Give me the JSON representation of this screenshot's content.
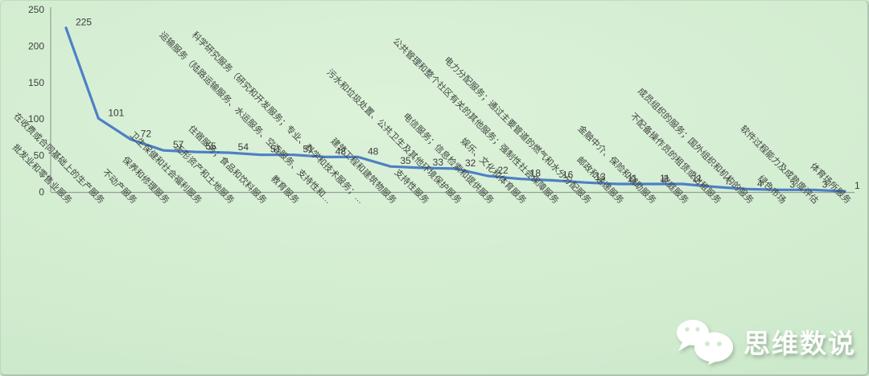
{
  "chart_data": {
    "type": "line",
    "title": "",
    "xlabel": "",
    "ylabel": "",
    "categories": [
      "批发业和零售业服务",
      "在收费或合同基础上的生产服务",
      "不动产服务",
      "保养和修理服务",
      "卫生保健和社会福利服务",
      "无形资产和土地服务",
      "住宿服务；食品和饮料服务",
      "教育服务",
      "运输服务（陆路运输服务、水运服务、空运服务、支持性和…",
      "科学研究服务（研究和开发服务；专业、科学和技术服务；…",
      "建筑工程和建筑物服务",
      "支持性服务",
      "污水和垃圾处置、公共卫生及其他环境保护服务",
      "电信服务；信息检索和提供服务",
      "娱乐、文化和体育服务",
      "公共管理和整个社区有关的其他服务；强制性社会保障服务",
      "电力分配服务；通过主要管道的燃气和水分分配服务",
      "邮政和速递服务",
      "金融中介、保险和辅助服务",
      "家庭服务",
      "不配备操作员的租赁或出租服务",
      "成员组织的服务；国外组织和机构的服务",
      "绿色市场",
      "软件过程能力及成熟度评估",
      "体育场所服务"
    ],
    "values": [
      225,
      101,
      72,
      57,
      55,
      54,
      51,
      51,
      48,
      48,
      35,
      33,
      32,
      22,
      18,
      16,
      13,
      11,
      11,
      11,
      7,
      4,
      3,
      3,
      1
    ],
    "ylim": [
      0,
      250
    ],
    "yticks": [
      0,
      50,
      100,
      150,
      200,
      250
    ],
    "grid": false,
    "legend": "none",
    "data_labels": true,
    "line_color": "#4d80c6",
    "axis_color": "#95a098",
    "tick_label_color": "#3f3f3f"
  },
  "background": {
    "center_color": "#dcf2d9",
    "edge_color": "#c6e5c6"
  },
  "watermark": {
    "text": "思维数说",
    "icon": "wechat-icon",
    "text_color": "#fbfdfa"
  }
}
